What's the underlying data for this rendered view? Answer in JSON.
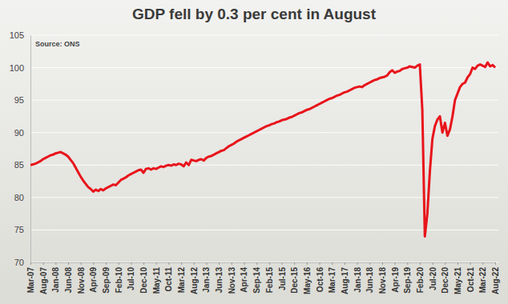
{
  "chart_data": {
    "type": "line",
    "title": "GDP fell by 0.3 per cent in August",
    "source": "Source: ONS",
    "color": "#e8141b",
    "grid": true,
    "ylim": [
      70,
      105
    ],
    "yticks": [
      70,
      75,
      80,
      85,
      90,
      95,
      100,
      105
    ],
    "categories": [
      "Mar-07",
      null,
      null,
      null,
      null,
      "Aug-07",
      null,
      null,
      null,
      null,
      "Jan-08",
      null,
      null,
      null,
      null,
      "Jun-08",
      null,
      null,
      null,
      null,
      "Nov-08",
      null,
      null,
      null,
      null,
      "Apr-09",
      null,
      null,
      null,
      null,
      "Sep-09",
      null,
      null,
      null,
      null,
      "Feb-10",
      null,
      null,
      null,
      null,
      "Jul-10",
      null,
      null,
      null,
      null,
      "Dec-10",
      null,
      null,
      null,
      null,
      "May-11",
      null,
      null,
      null,
      null,
      "Oct-11",
      null,
      null,
      null,
      null,
      "Mar-12",
      null,
      null,
      null,
      null,
      "Aug-12",
      null,
      null,
      null,
      null,
      "Jan-13",
      null,
      null,
      null,
      null,
      "Jun-13",
      null,
      null,
      null,
      null,
      "Nov-13",
      null,
      null,
      null,
      null,
      "Apr-14",
      null,
      null,
      null,
      null,
      "Sep-14",
      null,
      null,
      null,
      null,
      "Feb-15",
      null,
      null,
      null,
      null,
      "Jul-15",
      null,
      null,
      null,
      null,
      "Dec-15",
      null,
      null,
      null,
      null,
      "May-16",
      null,
      null,
      null,
      null,
      "Oct-16",
      null,
      null,
      null,
      null,
      "Mar-17",
      null,
      null,
      null,
      null,
      "Aug-17",
      null,
      null,
      null,
      null,
      "Jan-18",
      null,
      null,
      null,
      null,
      "Jun-18",
      null,
      null,
      null,
      null,
      "Nov-18",
      null,
      null,
      null,
      null,
      "Apr-19",
      null,
      null,
      null,
      null,
      "Sep-19",
      null,
      null,
      null,
      null,
      "Feb-20",
      null,
      null,
      null,
      null,
      "Jul-20",
      null,
      null,
      null,
      null,
      "Dec-20",
      null,
      null,
      null,
      null,
      "May-21",
      null,
      null,
      null,
      null,
      "Oct-21",
      null,
      null,
      null,
      null,
      "Mar-22",
      null,
      null,
      null,
      null,
      "Aug-22"
    ],
    "values": [
      85.0,
      85.1,
      85.2,
      85.4,
      85.6,
      85.9,
      86.1,
      86.3,
      86.5,
      86.6,
      86.8,
      86.9,
      87.0,
      86.8,
      86.6,
      86.3,
      85.8,
      85.3,
      84.6,
      83.9,
      83.2,
      82.6,
      82.1,
      81.6,
      81.3,
      80.9,
      81.2,
      81.0,
      81.3,
      81.1,
      81.4,
      81.6,
      81.8,
      82.0,
      81.9,
      82.3,
      82.7,
      82.9,
      83.1,
      83.4,
      83.6,
      83.8,
      84.0,
      84.2,
      84.3,
      83.8,
      84.4,
      84.5,
      84.3,
      84.5,
      84.4,
      84.6,
      84.8,
      84.7,
      84.9,
      85.0,
      84.9,
      85.1,
      85.0,
      85.2,
      85.1,
      84.8,
      85.4,
      85.0,
      85.8,
      85.7,
      85.6,
      85.8,
      85.9,
      85.7,
      86.1,
      86.3,
      86.4,
      86.6,
      86.8,
      87.0,
      87.2,
      87.3,
      87.6,
      87.9,
      88.1,
      88.3,
      88.6,
      88.8,
      89.0,
      89.2,
      89.4,
      89.6,
      89.8,
      90.0,
      90.2,
      90.4,
      90.6,
      90.8,
      91.0,
      91.1,
      91.3,
      91.4,
      91.6,
      91.7,
      91.9,
      92.0,
      92.1,
      92.3,
      92.4,
      92.6,
      92.8,
      93.0,
      93.1,
      93.3,
      93.5,
      93.6,
      93.8,
      94.0,
      94.2,
      94.4,
      94.6,
      94.8,
      95.0,
      95.2,
      95.3,
      95.5,
      95.7,
      95.8,
      96.0,
      96.2,
      96.3,
      96.5,
      96.7,
      96.9,
      97.0,
      97.1,
      97.0,
      97.3,
      97.5,
      97.7,
      97.9,
      98.1,
      98.2,
      98.4,
      98.5,
      98.6,
      98.8,
      99.3,
      99.6,
      99.2,
      99.4,
      99.5,
      99.8,
      99.9,
      100.0,
      100.2,
      100.1,
      100.0,
      100.3,
      100.5,
      93.5,
      74.0,
      77.5,
      84.0,
      89.0,
      91.0,
      92.0,
      92.5,
      90.0,
      91.5,
      89.5,
      90.5,
      92.5,
      95.0,
      96.0,
      97.0,
      97.5,
      97.7,
      98.5,
      99.0,
      100.0,
      99.8,
      100.3,
      100.5,
      100.3,
      100.1,
      100.8,
      100.2,
      100.4,
      100.0
    ]
  }
}
